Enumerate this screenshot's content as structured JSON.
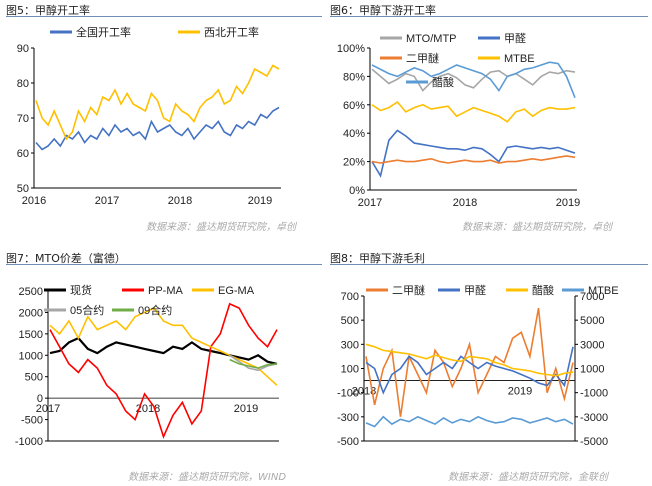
{
  "colors": {
    "blue": "#4472c4",
    "orange": "#ed7d31",
    "gold": "#ffc000",
    "gray": "#a6a6a6",
    "black": "#000000",
    "red": "#ff0000",
    "lightblue": "#5b9bd5",
    "green": "#70ad47",
    "rule": "#6f8fb6"
  },
  "panels": [
    {
      "title": "图5：甲醇开工率",
      "source": "数据来源：盛达期货研究院，卓创"
    },
    {
      "title": "图6：甲醇下游开工率",
      "source": "数据来源：盛达期货研究院，卓创"
    },
    {
      "title": "图7：MTO价差（富德）",
      "source": "数据来源：盛达期货研究院，WIND"
    },
    {
      "title": "图8：甲醇下游毛利",
      "source": "数据来源：盛达期货研究院，金联创"
    }
  ],
  "chart_data": [
    {
      "type": "line",
      "ylim": [
        50,
        90
      ],
      "yticks": [
        "50",
        "60",
        "70",
        "80",
        "90"
      ],
      "xlabels": [
        "2016",
        "2017",
        "2018",
        "2019"
      ],
      "legend": "top-center",
      "series": [
        {
          "name": "全国开工率",
          "color": "blue",
          "values": [
            63,
            61,
            62,
            64,
            62,
            65,
            64,
            66,
            63,
            65,
            64,
            67,
            65,
            68,
            66,
            67,
            65,
            66,
            64,
            69,
            66,
            67,
            68,
            66,
            65,
            67,
            64,
            66,
            68,
            67,
            69,
            66,
            65,
            68,
            67,
            69,
            68,
            71,
            70,
            72,
            73
          ]
        },
        {
          "name": "西北开工率",
          "color": "gold",
          "values": [
            75,
            70,
            68,
            72,
            68,
            64,
            66,
            72,
            69,
            73,
            71,
            76,
            75,
            78,
            74,
            77,
            74,
            73,
            72,
            77,
            75,
            70,
            69,
            74,
            72,
            71,
            69,
            73,
            75,
            76,
            78,
            74,
            75,
            79,
            77,
            80,
            84,
            83,
            82,
            85,
            84
          ]
        }
      ]
    },
    {
      "type": "line",
      "ylim": [
        0,
        100
      ],
      "yticks": [
        "0%",
        "20%",
        "40%",
        "60%",
        "80%",
        "100%"
      ],
      "xlabels": [
        "2017",
        "2018",
        "2019"
      ],
      "legend": "top",
      "series": [
        {
          "name": "MTO/MTP",
          "color": "gray",
          "values": [
            85,
            80,
            75,
            78,
            82,
            80,
            70,
            76,
            80,
            82,
            79,
            74,
            72,
            78,
            83,
            84,
            80,
            82,
            78,
            74,
            80,
            83,
            82,
            84,
            83
          ]
        },
        {
          "name": "甲醛",
          "color": "blue",
          "values": [
            20,
            10,
            35,
            42,
            38,
            33,
            32,
            31,
            30,
            29,
            29,
            28,
            30,
            29,
            25,
            20,
            30,
            31,
            30,
            29,
            30,
            29,
            30,
            28,
            26
          ]
        },
        {
          "name": "二甲醚",
          "color": "orange",
          "values": [
            20,
            19,
            20,
            21,
            20,
            20,
            21,
            22,
            20,
            19,
            20,
            21,
            20,
            20,
            21,
            19,
            20,
            20,
            21,
            22,
            21,
            22,
            23,
            24,
            23
          ]
        },
        {
          "name": "MTBE",
          "color": "gold",
          "values": [
            60,
            56,
            58,
            62,
            55,
            58,
            60,
            57,
            58,
            59,
            52,
            55,
            58,
            56,
            54,
            52,
            48,
            55,
            57,
            52,
            56,
            58,
            57,
            57,
            58
          ]
        },
        {
          "name": "醋酸",
          "color": "lightblue",
          "values": [
            88,
            85,
            82,
            80,
            83,
            86,
            84,
            80,
            82,
            85,
            88,
            86,
            84,
            82,
            78,
            70,
            80,
            82,
            85,
            86,
            88,
            90,
            89,
            80,
            65
          ]
        }
      ]
    },
    {
      "type": "line",
      "ylim": [
        -1000,
        2500
      ],
      "yticks": [
        "-1000",
        "-500",
        "0",
        "500",
        "1000",
        "1500",
        "2000",
        "2500"
      ],
      "xlabels": [
        "2017",
        "2018",
        "2019"
      ],
      "legend": "top",
      "series": [
        {
          "name": "现货",
          "color": "black",
          "values": [
            1050,
            1100,
            1300,
            1400,
            1150,
            1050,
            1200,
            1300,
            1250,
            1200,
            1150,
            1100,
            1050,
            1200,
            1150,
            1300,
            1150,
            1100,
            1050,
            1000,
            950,
            900,
            1000,
            850,
            800
          ]
        },
        {
          "name": "PP-MA",
          "color": "red",
          "values": [
            1600,
            1200,
            800,
            600,
            900,
            700,
            300,
            100,
            -300,
            -500,
            100,
            -200,
            -900,
            -400,
            -100,
            -600,
            -300,
            1200,
            1500,
            2200,
            2100,
            1700,
            1400,
            1200,
            1600
          ]
        },
        {
          "name": "EG-MA",
          "color": "gold",
          "values": [
            1700,
            1500,
            1800,
            1400,
            1900,
            1600,
            1700,
            1800,
            1600,
            1900,
            2000,
            2100,
            1800,
            1700,
            1700,
            1400,
            1300,
            1200,
            1100,
            1000,
            900,
            800,
            700,
            500,
            300
          ]
        },
        {
          "name": "05合约",
          "color": "gray",
          "values": [
            null,
            null,
            null,
            null,
            null,
            null,
            null,
            null,
            null,
            null,
            null,
            null,
            null,
            null,
            null,
            null,
            null,
            null,
            null,
            1000,
            850,
            700,
            650,
            750,
            800
          ]
        },
        {
          "name": "09合约",
          "color": "green",
          "values": [
            null,
            null,
            null,
            null,
            null,
            null,
            null,
            null,
            null,
            null,
            null,
            null,
            null,
            null,
            null,
            null,
            null,
            null,
            null,
            900,
            800,
            750,
            700,
            780,
            800
          ]
        }
      ]
    },
    {
      "type": "line",
      "ylim": [
        -500,
        700
      ],
      "y2lim": [
        -5000,
        7000
      ],
      "yticks": [
        "-500",
        "-300",
        "-100",
        "100",
        "300",
        "500",
        "700"
      ],
      "y2ticks": [
        "-5000",
        "-3000",
        "-1000",
        "1000",
        "3000",
        "5000",
        "7000"
      ],
      "xlabels": [
        "2018",
        "2019"
      ],
      "legend": "top",
      "series": [
        {
          "name": "二甲醚",
          "color": "orange",
          "values": [
            200,
            -200,
            100,
            250,
            -300,
            200,
            50,
            -100,
            250,
            150,
            -50,
            100,
            300,
            -100,
            50,
            200,
            150,
            350,
            400,
            200,
            600,
            -100,
            100,
            -150,
            150
          ]
        },
        {
          "name": "甲醛",
          "color": "blue",
          "values": [
            150,
            100,
            -100,
            50,
            100,
            200,
            150,
            50,
            100,
            150,
            100,
            200,
            150,
            100,
            150,
            120,
            100,
            80,
            50,
            20,
            -20,
            -40,
            50,
            -40,
            280
          ]
        },
        {
          "name": "醋酸",
          "color": "gold",
          "values": [
            300,
            280,
            250,
            240,
            230,
            220,
            200,
            180,
            210,
            190,
            170,
            160,
            200,
            190,
            180,
            150,
            130,
            100,
            90,
            80,
            60,
            50,
            40,
            60,
            70
          ]
        },
        {
          "name": "MTBE",
          "color": "lightblue",
          "axis": "right",
          "values": [
            -3500,
            -3800,
            -3000,
            -3600,
            -3200,
            -3400,
            -3000,
            -3300,
            -3600,
            -3100,
            -3500,
            -3200,
            -3400,
            -3000,
            -3300,
            -3500,
            -3400,
            -3100,
            -3200,
            -3500,
            -3300,
            -3100,
            -3400,
            -3200,
            -3600
          ]
        }
      ]
    }
  ]
}
